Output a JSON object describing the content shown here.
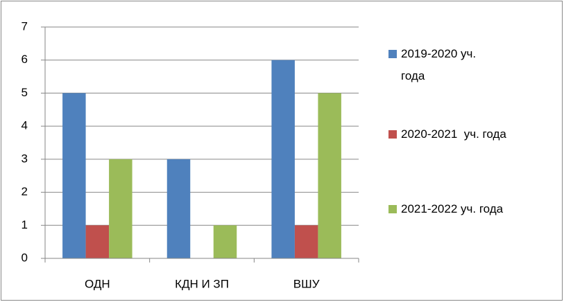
{
  "chart_data": {
    "type": "bar",
    "categories": [
      "ОДН",
      "КДН И ЗП",
      "ВШУ"
    ],
    "series": [
      {
        "name": "2019-2020 уч. года",
        "color": "#4f81bd",
        "values": [
          5,
          3,
          6
        ]
      },
      {
        "name": "2020-2021  уч. года",
        "color": "#c0504d",
        "values": [
          1,
          0,
          1
        ]
      },
      {
        "name": "2021-2022 уч. года",
        "color": "#9bbb59",
        "values": [
          3,
          1,
          5
        ]
      }
    ],
    "ylim": [
      0,
      7
    ],
    "yticks": [
      0,
      1,
      2,
      3,
      4,
      5,
      6,
      7
    ],
    "grid": true,
    "legend": "right"
  }
}
